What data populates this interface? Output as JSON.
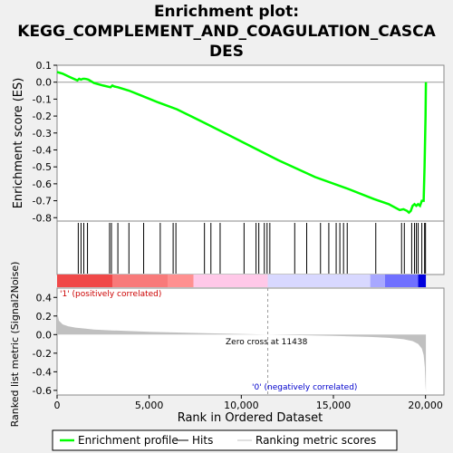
{
  "chart_data": {
    "type": "line",
    "title": "Enrichment plot: KEGG_COMPLEMENT_AND_COAGULATION_CASCADES",
    "title_lines": [
      "Enrichment plot:",
      "KEGG_COMPLEMENT_AND_COAGULATION_CASCA",
      "DES"
    ],
    "top_panel": {
      "ylabel": "Enrichment score (ES)",
      "ylim": [
        -0.82,
        0.1
      ],
      "yticks": [
        0.1,
        0.0,
        -0.1,
        -0.2,
        -0.3,
        -0.4,
        -0.5,
        -0.6,
        -0.7,
        -0.8
      ],
      "ytick_labels": [
        "0.1",
        "0.0",
        "-0.1",
        "-0.2",
        "-0.3",
        "-0.4",
        "-0.5",
        "-0.6",
        "-0.7",
        "-0.8"
      ],
      "series": [
        {
          "name": "Enrichment profile",
          "color": "#00ff00",
          "x": [
            0,
            300,
            700,
            1100,
            1200,
            1300,
            1400,
            1500,
            1600,
            1700,
            2000,
            2500,
            2900,
            3000,
            3100,
            3300,
            3900,
            4600,
            5500,
            6500,
            8000,
            10000,
            12000,
            14000,
            15800,
            17200,
            18000,
            18600,
            18800,
            19000,
            19100,
            19200,
            19300,
            19400,
            19500,
            19600,
            19700,
            19800,
            19900,
            19950,
            20000,
            20020
          ],
          "y": [
            0.06,
            0.05,
            0.03,
            0.01,
            0.02,
            0.015,
            0.02,
            0.02,
            0.018,
            0.015,
            -0.005,
            -0.02,
            -0.03,
            -0.02,
            -0.025,
            -0.03,
            -0.05,
            -0.08,
            -0.12,
            -0.16,
            -0.24,
            -0.35,
            -0.46,
            -0.56,
            -0.63,
            -0.69,
            -0.72,
            -0.755,
            -0.75,
            -0.76,
            -0.77,
            -0.76,
            -0.73,
            -0.72,
            -0.73,
            -0.72,
            -0.73,
            -0.7,
            -0.7,
            -0.5,
            -0.2,
            0.0
          ]
        }
      ],
      "hits": [
        1150,
        1300,
        1450,
        1650,
        2850,
        2950,
        3300,
        3900,
        4700,
        5600,
        6300,
        6450,
        8000,
        8350,
        8850,
        10150,
        10800,
        10950,
        11250,
        11400,
        11550,
        12900,
        13550,
        14300,
        14750,
        15150,
        15350,
        15550,
        15750,
        17300,
        18700,
        18850,
        19250,
        19400,
        19500,
        19600,
        19800,
        19950,
        20000
      ]
    },
    "bottom_panel": {
      "ylabel": "Ranked list metric (Signal2Noise)",
      "ylim": [
        -0.65,
        0.5
      ],
      "yticks": [
        0.4,
        0.2,
        0.0,
        -0.2,
        -0.4,
        -0.6
      ],
      "ytick_labels": [
        "0.4",
        "0.2",
        "0.0",
        "-0.2",
        "-0.4",
        "-0.6"
      ],
      "zero_cross_label": "Zero cross at 11438",
      "zero_cross": 11438,
      "positive_label": "'1' (positively correlated)",
      "negative_label": "'0' (negatively correlated)",
      "metric_x": [
        0,
        100,
        300,
        600,
        1000,
        1500,
        2000,
        3000,
        5000,
        8000,
        11438,
        15000,
        17000,
        18000,
        18800,
        19300,
        19600,
        19800,
        19900,
        19960,
        20000,
        20020
      ],
      "metric_y": [
        0.25,
        0.15,
        0.11,
        0.09,
        0.075,
        0.065,
        0.055,
        0.045,
        0.03,
        0.015,
        0.0,
        -0.015,
        -0.025,
        -0.035,
        -0.05,
        -0.07,
        -0.1,
        -0.15,
        -0.22,
        -0.35,
        -0.55,
        -0.62
      ]
    },
    "xlabel": "Rank in Ordered Dataset",
    "xlim": [
      0,
      21000
    ],
    "xticks": [
      0,
      5000,
      10000,
      15000,
      20000
    ],
    "xtick_labels": [
      "0",
      "5,000",
      "10,000",
      "15,000",
      "20,000"
    ],
    "legend": [
      {
        "label": "Enrichment profile",
        "color": "#00ff00"
      },
      {
        "label": "Hits",
        "color": "#000000"
      },
      {
        "label": "Ranking metric scores",
        "color": "#c0c0c0"
      }
    ],
    "legend_position": "bottom"
  }
}
